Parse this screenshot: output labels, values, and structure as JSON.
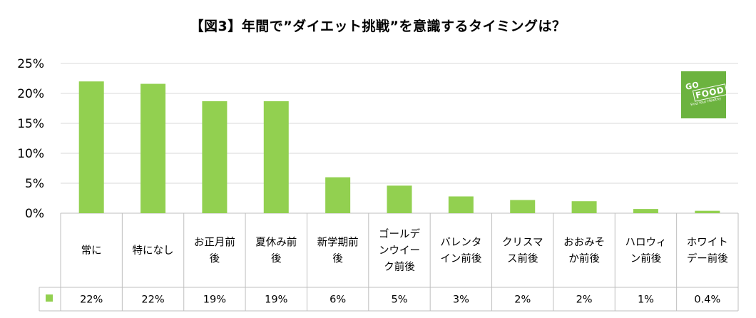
{
  "chart_data": {
    "type": "bar",
    "title": "【図3】年間で”ダイエット挑戦”を意識するタイミングは？",
    "categories": [
      [
        "常に"
      ],
      [
        "特になし"
      ],
      [
        "お正月前",
        "後"
      ],
      [
        "夏休み前",
        "後"
      ],
      [
        "新学期前",
        "後"
      ],
      [
        "ゴールデ",
        "ンウイー",
        "ク前後"
      ],
      [
        "バレンタ",
        "イン前後"
      ],
      [
        "クリスマ",
        "ス前後"
      ],
      [
        "おおみそ",
        "か前後"
      ],
      [
        "ハロウィ",
        "ン前後"
      ],
      [
        "ホワイト",
        "デー前後"
      ]
    ],
    "values": [
      22.0,
      21.6,
      18.7,
      18.7,
      6.0,
      4.6,
      2.8,
      2.2,
      2.0,
      0.7,
      0.4
    ],
    "value_labels": [
      "22%",
      "22%",
      "19%",
      "19%",
      "6%",
      "5%",
      "3%",
      "2%",
      "2%",
      "1%",
      "0.4%"
    ],
    "yticks": [
      "25%",
      "20%",
      "15%",
      "10%",
      "5%",
      "0%"
    ],
    "ylim": [
      0,
      25
    ],
    "grid": true,
    "legend": "left of data table",
    "bar_color": "#92d050",
    "grid_color": "#d9d9d9"
  },
  "logo": {
    "line1": "GO",
    "line2": "FOOD",
    "line3": "Find Your Healthy",
    "color": "#6cb33f"
  }
}
